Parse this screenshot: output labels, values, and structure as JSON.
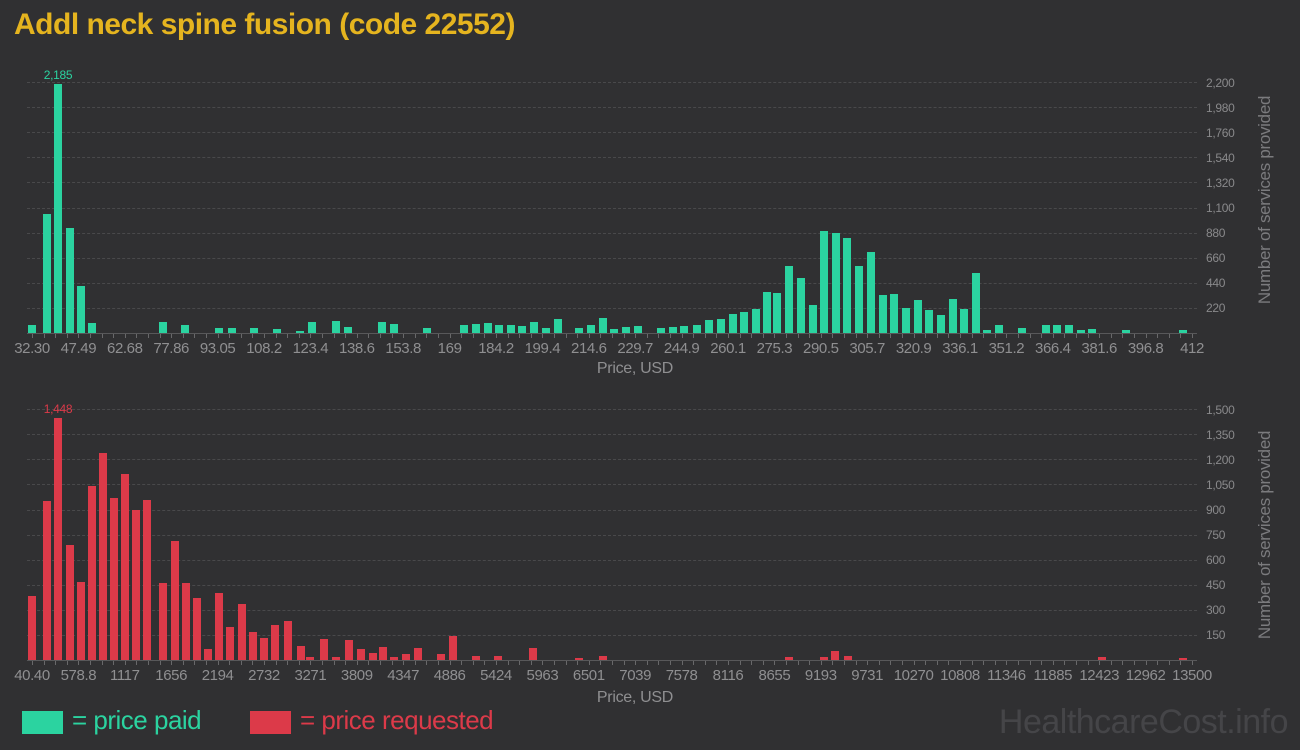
{
  "title": "Addl neck spine fusion (code 22552)",
  "watermark": "HealthcareCost.info",
  "legend": {
    "paid": "= price paid",
    "requested": "= price requested"
  },
  "colors": {
    "background": "#303032",
    "title_gold": "#e5b41f",
    "paid_green": "#2bd3a0",
    "requested_red": "#dc3a49",
    "axis_text": "#8f8f91",
    "grid": "#49494b"
  },
  "chart_data": [
    {
      "type": "bar",
      "name": "price paid",
      "color": "#2bd3a0",
      "peak_label": "2,185",
      "x_axis": {
        "label": "Price, USD",
        "min": 32.3,
        "max": 412,
        "tick_labels": [
          "32.30",
          "47.49",
          "62.68",
          "77.86",
          "93.05",
          "108.2",
          "123.4",
          "138.6",
          "153.8",
          "169",
          "184.2",
          "199.4",
          "214.6",
          "229.7",
          "244.9",
          "260.1",
          "275.3",
          "290.5",
          "305.7",
          "320.9",
          "336.1",
          "351.2",
          "366.4",
          "381.6",
          "396.8",
          "412"
        ]
      },
      "y_axis": {
        "label": "Number of services provided",
        "tick_step": 220,
        "max": 2200,
        "tick_labels": [
          "220",
          "440",
          "660",
          "880",
          "1,100",
          "1,320",
          "1,540",
          "1,760",
          "1,980",
          "2,200"
        ]
      },
      "bars": [
        [
          32.2,
          70
        ],
        [
          37.2,
          1040
        ],
        [
          40.8,
          2185
        ],
        [
          44.7,
          920
        ],
        [
          48.3,
          410
        ],
        [
          51.9,
          85
        ],
        [
          75.0,
          100
        ],
        [
          82.3,
          70
        ],
        [
          93.6,
          40
        ],
        [
          97.6,
          44
        ],
        [
          105.0,
          48
        ],
        [
          112.6,
          32
        ],
        [
          120.0,
          22
        ],
        [
          123.8,
          97
        ],
        [
          131.8,
          108
        ],
        [
          135.6,
          50
        ],
        [
          147.0,
          97
        ],
        [
          150.7,
          80
        ],
        [
          161.7,
          45
        ],
        [
          173.7,
          73
        ],
        [
          177.6,
          80
        ],
        [
          181.4,
          90
        ],
        [
          185.2,
          73
        ],
        [
          189.0,
          73
        ],
        [
          192.7,
          58
        ],
        [
          196.5,
          95
        ],
        [
          200.4,
          45
        ],
        [
          204.3,
          120
        ],
        [
          211.4,
          43
        ],
        [
          215.2,
          70
        ],
        [
          219.1,
          135
        ],
        [
          222.9,
          35
        ],
        [
          226.7,
          55
        ],
        [
          230.8,
          62
        ],
        [
          238.1,
          45
        ],
        [
          242.0,
          57
        ],
        [
          245.8,
          62
        ],
        [
          249.9,
          70
        ],
        [
          254.0,
          117
        ],
        [
          257.8,
          123
        ],
        [
          261.6,
          170
        ],
        [
          265.4,
          185
        ],
        [
          269.3,
          208
        ],
        [
          272.8,
          360
        ],
        [
          276.3,
          350
        ],
        [
          280.1,
          590
        ],
        [
          284.0,
          480
        ],
        [
          287.8,
          245
        ],
        [
          291.6,
          895
        ],
        [
          295.4,
          875
        ],
        [
          299.2,
          830
        ],
        [
          303.1,
          590
        ],
        [
          306.9,
          710
        ],
        [
          310.7,
          337
        ],
        [
          314.5,
          343
        ],
        [
          318.3,
          220
        ],
        [
          322.2,
          287
        ],
        [
          326.0,
          205
        ],
        [
          329.8,
          161
        ],
        [
          333.6,
          300
        ],
        [
          337.4,
          211
        ],
        [
          341.2,
          528
        ],
        [
          345.0,
          29
        ],
        [
          348.9,
          73
        ],
        [
          356.5,
          44
        ],
        [
          364.1,
          73
        ],
        [
          367.9,
          67
        ],
        [
          371.8,
          73
        ],
        [
          375.6,
          29
        ],
        [
          379.4,
          38
        ],
        [
          390.3,
          29
        ],
        [
          408.9,
          29
        ]
      ]
    },
    {
      "type": "bar",
      "name": "price requested",
      "color": "#dc3a49",
      "peak_label": "1,448",
      "x_axis": {
        "label": "Price, USD",
        "min": 40.4,
        "max": 13500,
        "tick_labels": [
          "40.40",
          "578.8",
          "1117",
          "1656",
          "2194",
          "2732",
          "3271",
          "3809",
          "4347",
          "4886",
          "5424",
          "5963",
          "6501",
          "7039",
          "7578",
          "8116",
          "8655",
          "9193",
          "9731",
          "10270",
          "10808",
          "11346",
          "11885",
          "12423",
          "12962",
          "13500"
        ]
      },
      "y_axis": {
        "label": "Number of services provided",
        "tick_step": 150,
        "max": 1500,
        "tick_labels": [
          "150",
          "300",
          "450",
          "600",
          "750",
          "900",
          "1,050",
          "1,200",
          "1,350",
          "1,500"
        ]
      },
      "bars": [
        [
          40,
          385
        ],
        [
          213,
          950
        ],
        [
          342,
          1448
        ],
        [
          480,
          690
        ],
        [
          607,
          465
        ],
        [
          735,
          1040
        ],
        [
          862,
          1240
        ],
        [
          992,
          970
        ],
        [
          1118,
          1110
        ],
        [
          1245,
          895
        ],
        [
          1373,
          955
        ],
        [
          1564,
          460
        ],
        [
          1698,
          710
        ],
        [
          1825,
          460
        ],
        [
          1953,
          370
        ],
        [
          2084,
          66
        ],
        [
          2212,
          404
        ],
        [
          2340,
          196
        ],
        [
          2471,
          334
        ],
        [
          2599,
          170
        ],
        [
          2726,
          130
        ],
        [
          2858,
          210
        ],
        [
          3008,
          234
        ],
        [
          3162,
          86
        ],
        [
          3270,
          20
        ],
        [
          3430,
          128
        ],
        [
          3565,
          16
        ],
        [
          3720,
          122
        ],
        [
          3856,
          66
        ],
        [
          3991,
          40
        ],
        [
          4107,
          76
        ],
        [
          4243,
          18
        ],
        [
          4378,
          34
        ],
        [
          4513,
          70
        ],
        [
          4784,
          36
        ],
        [
          4919,
          146
        ],
        [
          5190,
          24
        ],
        [
          5442,
          22
        ],
        [
          5848,
          74
        ],
        [
          6389,
          14
        ],
        [
          6660,
          26
        ],
        [
          8826,
          20
        ],
        [
          9232,
          16
        ],
        [
          9358,
          55
        ],
        [
          9503,
          25
        ],
        [
          12452,
          18
        ],
        [
          13399,
          14
        ]
      ]
    }
  ]
}
